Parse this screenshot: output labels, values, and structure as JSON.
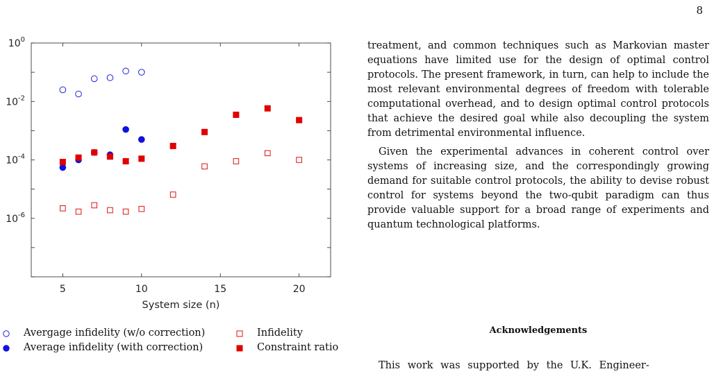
{
  "page": {
    "number": "8"
  },
  "chart_data": {
    "type": "scatter",
    "xlabel": "System size (n)",
    "y_scale": "log",
    "xlim": [
      3,
      22
    ],
    "ylim": [
      1e-08,
      1
    ],
    "x_ticks": [
      5,
      10,
      15,
      20
    ],
    "x_tick_labels": [
      "5",
      "10",
      "15",
      "20"
    ],
    "y_ticks": [
      {
        "value": 1,
        "base": "10",
        "exp": "0"
      },
      {
        "value": 0.01,
        "base": "10",
        "exp": "-2"
      },
      {
        "value": 0.0001,
        "base": "10",
        "exp": "-4"
      },
      {
        "value": 1e-06,
        "base": "10",
        "exp": "-6"
      }
    ],
    "grid": false,
    "series": [
      {
        "name": "Avergage infidelity (w/o correction)",
        "marker": "open-circle",
        "color": "#2020e0",
        "x": [
          5,
          6,
          7,
          8,
          9,
          10
        ],
        "y": [
          0.025,
          0.018,
          0.06,
          0.065,
          0.11,
          0.1
        ]
      },
      {
        "name": "Average infidelity (with correction)",
        "marker": "filled-circle",
        "color": "#1010e0",
        "x": [
          5,
          6,
          7,
          8,
          9,
          10
        ],
        "y": [
          5.5e-05,
          0.0001,
          0.00018,
          0.00015,
          0.0011,
          0.0005
        ]
      },
      {
        "name": "Infidelity",
        "marker": "open-square",
        "color": "#e01010",
        "x": [
          5,
          6,
          7,
          8,
          9,
          10,
          12,
          14,
          16,
          18,
          20
        ],
        "y": [
          2.2e-06,
          1.7e-06,
          2.8e-06,
          1.9e-06,
          1.7e-06,
          2.1e-06,
          6.5e-06,
          6e-05,
          9e-05,
          0.00017,
          0.0001
        ]
      },
      {
        "name": "Constraint ratio",
        "marker": "filled-square",
        "color": "#e00000",
        "x": [
          5,
          6,
          7,
          8,
          9,
          10,
          12,
          14,
          16,
          18,
          20
        ],
        "y": [
          8.5e-05,
          0.00012,
          0.00018,
          0.00013,
          9e-05,
          0.00011,
          0.0003,
          0.0009,
          0.0035,
          0.0058,
          0.0023
        ]
      }
    ],
    "legend_placement": "below"
  },
  "legend": {
    "items": [
      {
        "label": "Avergage infidelity (w/o correction)",
        "marker": "open-circle-icon"
      },
      {
        "label": "Average infidelity (with correction)",
        "marker": "filled-circle-icon"
      },
      {
        "label": "Infidelity",
        "marker": "open-square-icon"
      },
      {
        "label": "Constraint ratio",
        "marker": "filled-square-icon"
      }
    ]
  },
  "text": {
    "paragraph1": "treatment, and common techniques such as Markovian master equations have limited use for the design of optimal control protocols. The present framework, in turn, can help to include the most relevant environmental degrees of freedom with tolerable computational overhead, and to design optimal control protocols that achieve the desired goal while also decoupling the system from detrimental environmental influence.",
    "paragraph2": "Given the experimental advances in coherent control over systems of increasing size, and the correspondingly growing demand for suitable control protocols, the ability to devise robust control for systems beyond the two-qubit paradigm can thus provide valuable support for a broad range of experiments and quantum technological platforms.",
    "ack_heading": "Acknowledgements",
    "ack_body": "This work was supported by the U.K. Engineer-"
  }
}
